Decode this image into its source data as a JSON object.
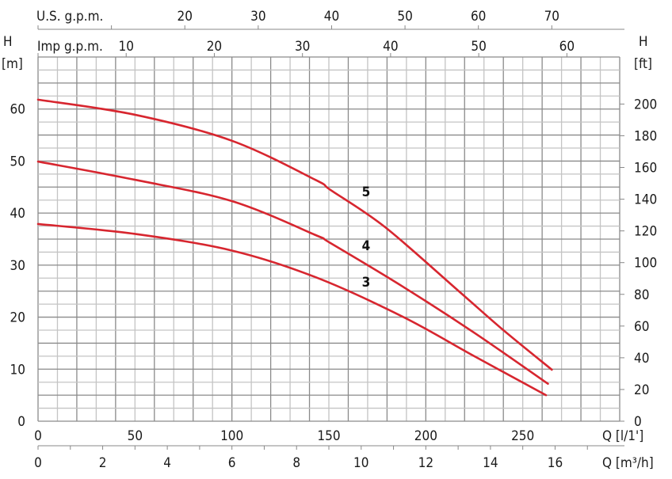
{
  "chart_data": {
    "type": "line",
    "title": "",
    "curve_color": "#d7262f",
    "grid": true,
    "x_axis_bottom": {
      "label": "Q [l/1']",
      "ticks": [
        0,
        50,
        100,
        150,
        200,
        250
      ],
      "range": [
        0,
        300
      ]
    },
    "x_axis_bottom2": {
      "label": "Q [m³/h]",
      "ticks": [
        0,
        2,
        4,
        6,
        8,
        10,
        12,
        14,
        16
      ]
    },
    "x_axis_top_us": {
      "label": "U.S. g.p.m.",
      "ticks": [
        20,
        30,
        40,
        50,
        60,
        70
      ]
    },
    "x_axis_top_imp": {
      "label": "Imp g.p.m.",
      "ticks": [
        10,
        20,
        30,
        40,
        50,
        60
      ]
    },
    "y_axis_left": {
      "label_line1": "H",
      "label_line2": "[m]",
      "ticks": [
        0,
        10,
        20,
        30,
        40,
        50,
        60
      ],
      "range": [
        0,
        70
      ]
    },
    "y_axis_right": {
      "label_line1": "H",
      "label_line2": "[ft]",
      "ticks": [
        0,
        20,
        40,
        60,
        80,
        100,
        120,
        140,
        160,
        180,
        200
      ]
    },
    "series": [
      {
        "name": "3",
        "x": [
          0,
          50,
          100,
          143,
          188,
          225,
          262
        ],
        "y": [
          37.9,
          36.0,
          32.8,
          27.7,
          20.1,
          12.5,
          5.0
        ]
      },
      {
        "name": "4",
        "x": [
          0,
          50,
          100,
          143,
          151,
          188,
          225,
          263
        ],
        "y": [
          49.9,
          46.4,
          42.3,
          35.8,
          34.2,
          25.9,
          17.0,
          7.2
        ]
      },
      {
        "name": "5",
        "x": [
          0,
          50,
          100,
          143,
          151,
          179,
          217,
          240,
          265
        ],
        "y": [
          61.8,
          58.9,
          53.9,
          46.4,
          44.4,
          37.3,
          25.0,
          17.5,
          9.9
        ]
      }
    ]
  }
}
